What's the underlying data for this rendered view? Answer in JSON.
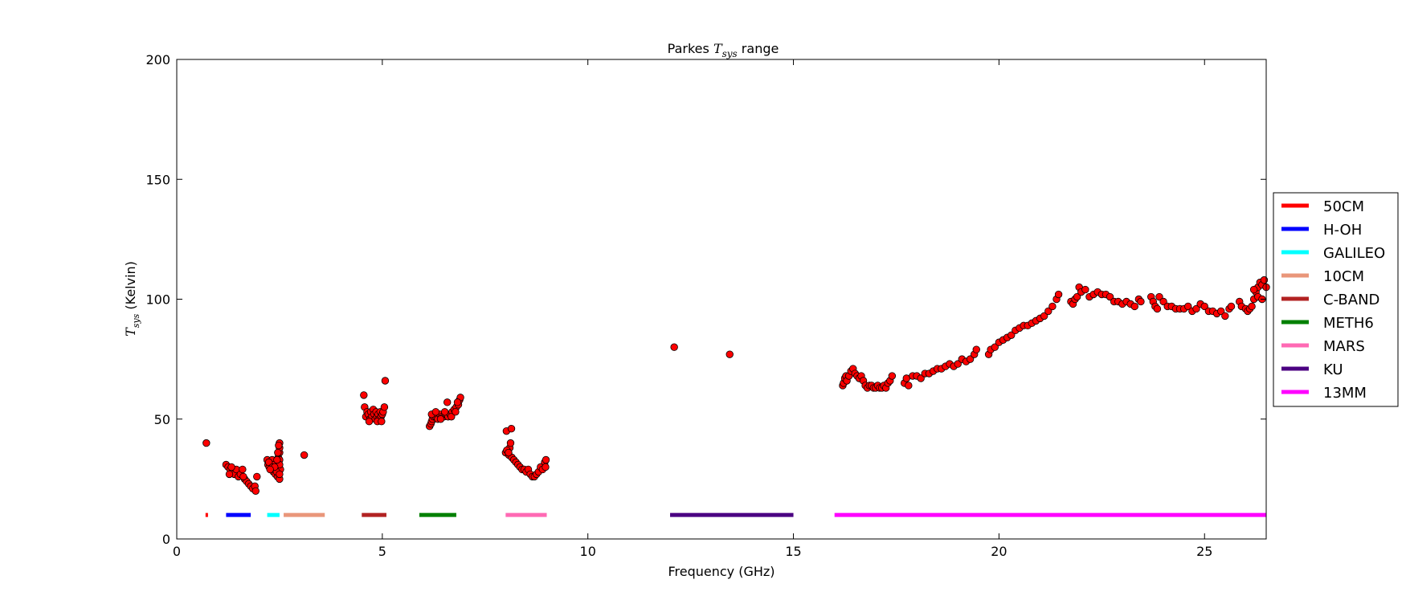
{
  "chart_data": {
    "type": "scatter",
    "title_prefix": "Parkes ",
    "title_math": "T",
    "title_sub": "sys",
    "title_suffix": " range",
    "xlabel": "Frequency (GHz)",
    "ylabel_math": "T",
    "ylabel_sub": "sys",
    "ylabel_suffix": " (Kelvin)",
    "xlim": [
      0,
      26.5
    ],
    "ylim": [
      0,
      200
    ],
    "xticks": [
      0,
      5,
      10,
      15,
      20,
      25
    ],
    "yticks": [
      0,
      50,
      100,
      150,
      200
    ],
    "grid": false,
    "legend_position": "outside-right",
    "point_color": "#ff0000",
    "point_edge_color": "#000000",
    "bands": [
      {
        "name": "50CM",
        "x": [
          0.7,
          0.76
        ],
        "y": 10,
        "color": "#ff0000"
      },
      {
        "name": "H-OH",
        "x": [
          1.2,
          1.8
        ],
        "y": 10,
        "color": "#0000ff"
      },
      {
        "name": "GALILEO",
        "x": [
          2.2,
          2.5
        ],
        "y": 10,
        "color": "#00ffff"
      },
      {
        "name": "10CM",
        "x": [
          2.6,
          3.6
        ],
        "y": 10,
        "color": "#e9967a"
      },
      {
        "name": "C-BAND",
        "x": [
          4.5,
          5.1
        ],
        "y": 10,
        "color": "#b22222"
      },
      {
        "name": "METH6",
        "x": [
          5.9,
          6.8
        ],
        "y": 10,
        "color": "#008000"
      },
      {
        "name": "MARS",
        "x": [
          8.0,
          9.0
        ],
        "y": 10,
        "color": "#ff69b4"
      },
      {
        "name": "KU",
        "x": [
          12.0,
          15.0
        ],
        "y": 10,
        "color": "#4b0082"
      },
      {
        "name": "13MM",
        "x": [
          16.0,
          26.5
        ],
        "y": 10,
        "color": "#ff00ff"
      }
    ],
    "series": [
      {
        "values": [
          [
            0.72,
            40
          ],
          [
            3.1,
            35
          ],
          [
            12.1,
            80
          ],
          [
            13.45,
            77
          ]
        ]
      },
      {
        "values": [
          [
            1.2,
            31
          ],
          [
            1.25,
            30
          ],
          [
            1.3,
            29
          ],
          [
            1.35,
            28
          ],
          [
            1.4,
            27
          ],
          [
            1.45,
            29
          ],
          [
            1.5,
            26
          ],
          [
            1.55,
            27
          ],
          [
            1.6,
            29
          ],
          [
            1.65,
            25
          ],
          [
            1.7,
            24
          ],
          [
            1.75,
            23
          ],
          [
            1.8,
            22
          ],
          [
            1.85,
            21
          ],
          [
            1.9,
            22
          ],
          [
            1.92,
            20
          ],
          [
            1.95,
            26
          ],
          [
            1.28,
            27
          ],
          [
            1.33,
            30
          ],
          [
            1.62,
            26
          ]
        ]
      },
      {
        "values": [
          [
            2.2,
            33
          ],
          [
            2.22,
            31
          ],
          [
            2.25,
            30
          ],
          [
            2.28,
            32
          ],
          [
            2.3,
            29
          ],
          [
            2.32,
            33
          ],
          [
            2.35,
            28
          ],
          [
            2.37,
            31
          ],
          [
            2.4,
            27
          ],
          [
            2.42,
            30
          ],
          [
            2.45,
            26
          ],
          [
            2.47,
            34
          ],
          [
            2.5,
            25
          ],
          [
            2.52,
            29
          ],
          [
            2.24,
            32
          ],
          [
            2.33,
            30
          ],
          [
            2.43,
            28
          ],
          [
            2.5,
            36
          ],
          [
            2.5,
            33
          ],
          [
            2.5,
            31
          ],
          [
            2.5,
            38
          ],
          [
            2.5,
            40
          ],
          [
            2.48,
            39
          ],
          [
            2.46,
            36
          ],
          [
            2.44,
            33
          ],
          [
            2.38,
            30
          ],
          [
            2.27,
            29
          ],
          [
            2.5,
            27
          ]
        ]
      },
      {
        "values": [
          [
            4.55,
            60
          ],
          [
            4.57,
            55
          ],
          [
            4.6,
            51
          ],
          [
            4.63,
            53
          ],
          [
            4.66,
            52
          ],
          [
            4.7,
            50
          ],
          [
            4.72,
            53
          ],
          [
            4.75,
            51
          ],
          [
            4.78,
            54
          ],
          [
            4.8,
            52
          ],
          [
            4.83,
            50
          ],
          [
            4.85,
            53
          ],
          [
            4.87,
            51
          ],
          [
            4.9,
            52
          ],
          [
            4.92,
            50
          ],
          [
            4.95,
            53
          ],
          [
            4.97,
            51
          ],
          [
            5.0,
            52
          ],
          [
            5.02,
            53
          ],
          [
            5.05,
            55
          ],
          [
            5.07,
            66
          ],
          [
            4.88,
            49
          ],
          [
            4.98,
            49
          ],
          [
            4.68,
            49
          ]
        ]
      },
      {
        "values": [
          [
            6.15,
            47
          ],
          [
            6.18,
            48
          ],
          [
            6.2,
            49
          ],
          [
            6.22,
            50
          ],
          [
            6.25,
            51
          ],
          [
            6.28,
            52
          ],
          [
            6.3,
            51
          ],
          [
            6.35,
            50
          ],
          [
            6.4,
            52
          ],
          [
            6.45,
            51
          ],
          [
            6.5,
            51
          ],
          [
            6.55,
            52
          ],
          [
            6.58,
            57
          ],
          [
            6.6,
            51
          ],
          [
            6.65,
            52
          ],
          [
            6.7,
            53
          ],
          [
            6.75,
            54
          ],
          [
            6.8,
            55
          ],
          [
            6.85,
            56
          ],
          [
            6.88,
            58
          ],
          [
            6.9,
            59
          ],
          [
            6.2,
            52
          ],
          [
            6.3,
            53
          ],
          [
            6.42,
            50
          ],
          [
            6.52,
            53
          ],
          [
            6.68,
            51
          ],
          [
            6.78,
            53
          ],
          [
            6.83,
            57
          ]
        ]
      },
      {
        "values": [
          [
            8.0,
            36
          ],
          [
            8.02,
            45
          ],
          [
            8.05,
            37
          ],
          [
            8.08,
            35
          ],
          [
            8.1,
            38
          ],
          [
            8.12,
            40
          ],
          [
            8.14,
            46
          ],
          [
            8.15,
            34
          ],
          [
            8.2,
            33
          ],
          [
            8.25,
            32
          ],
          [
            8.3,
            31
          ],
          [
            8.35,
            30
          ],
          [
            8.4,
            29
          ],
          [
            8.45,
            29
          ],
          [
            8.5,
            28
          ],
          [
            8.55,
            29
          ],
          [
            8.6,
            27
          ],
          [
            8.65,
            26
          ],
          [
            8.7,
            26
          ],
          [
            8.75,
            27
          ],
          [
            8.8,
            28
          ],
          [
            8.85,
            30
          ],
          [
            8.9,
            29
          ],
          [
            8.95,
            32
          ],
          [
            8.98,
            33
          ],
          [
            8.97,
            30
          ],
          [
            8.03,
            37
          ],
          [
            8.07,
            36
          ]
        ]
      },
      {
        "values": [
          [
            16.2,
            64
          ],
          [
            16.22,
            65
          ],
          [
            16.25,
            67
          ],
          [
            16.28,
            68
          ],
          [
            16.3,
            66
          ],
          [
            16.35,
            68
          ],
          [
            16.4,
            70
          ],
          [
            16.45,
            71
          ],
          [
            16.5,
            69
          ],
          [
            16.55,
            68
          ],
          [
            16.6,
            67
          ],
          [
            16.65,
            68
          ],
          [
            16.7,
            66
          ],
          [
            16.75,
            64
          ],
          [
            16.8,
            63
          ],
          [
            16.85,
            64
          ],
          [
            16.9,
            64
          ],
          [
            16.95,
            63
          ],
          [
            17.0,
            63
          ],
          [
            17.05,
            64
          ],
          [
            17.1,
            63
          ],
          [
            17.15,
            63
          ],
          [
            17.2,
            64
          ],
          [
            17.25,
            63
          ],
          [
            17.3,
            65
          ],
          [
            17.35,
            66
          ],
          [
            17.4,
            68
          ],
          [
            17.7,
            65
          ],
          [
            17.75,
            67
          ],
          [
            17.8,
            64
          ],
          [
            17.9,
            68
          ],
          [
            18.0,
            68
          ],
          [
            18.1,
            67
          ],
          [
            18.2,
            69
          ],
          [
            18.3,
            69
          ],
          [
            18.4,
            70
          ],
          [
            18.5,
            71
          ],
          [
            18.6,
            71
          ],
          [
            18.7,
            72
          ],
          [
            18.8,
            73
          ],
          [
            18.9,
            72
          ],
          [
            19.0,
            73
          ],
          [
            19.1,
            75
          ],
          [
            19.2,
            74
          ],
          [
            19.3,
            75
          ],
          [
            19.4,
            77
          ],
          [
            19.45,
            79
          ],
          [
            19.75,
            77
          ],
          [
            19.8,
            79
          ],
          [
            19.9,
            80
          ],
          [
            20.0,
            82
          ],
          [
            20.1,
            83
          ],
          [
            20.2,
            84
          ],
          [
            20.3,
            85
          ],
          [
            20.4,
            87
          ],
          [
            20.5,
            88
          ],
          [
            20.6,
            89
          ],
          [
            20.7,
            89
          ],
          [
            20.8,
            90
          ],
          [
            20.9,
            91
          ],
          [
            21.0,
            92
          ],
          [
            21.1,
            93
          ],
          [
            21.2,
            95
          ],
          [
            21.3,
            97
          ],
          [
            21.4,
            100
          ],
          [
            21.45,
            102
          ],
          [
            21.75,
            99
          ],
          [
            21.8,
            98
          ],
          [
            21.85,
            100
          ],
          [
            21.9,
            101
          ],
          [
            21.95,
            105
          ],
          [
            22.0,
            103
          ],
          [
            22.1,
            104
          ],
          [
            22.2,
            101
          ],
          [
            22.3,
            102
          ],
          [
            22.4,
            103
          ],
          [
            22.5,
            102
          ],
          [
            22.6,
            102
          ],
          [
            22.7,
            101
          ],
          [
            22.8,
            99
          ],
          [
            22.9,
            99
          ],
          [
            23.0,
            98
          ],
          [
            23.1,
            99
          ],
          [
            23.2,
            98
          ],
          [
            23.3,
            97
          ],
          [
            23.4,
            100
          ],
          [
            23.45,
            99
          ],
          [
            23.7,
            101
          ],
          [
            23.75,
            99
          ],
          [
            23.8,
            97
          ],
          [
            23.85,
            96
          ],
          [
            23.9,
            101
          ],
          [
            24.0,
            99
          ],
          [
            24.1,
            97
          ],
          [
            24.2,
            97
          ],
          [
            24.3,
            96
          ],
          [
            24.4,
            96
          ],
          [
            24.5,
            96
          ],
          [
            24.6,
            97
          ],
          [
            24.7,
            95
          ],
          [
            24.8,
            96
          ],
          [
            24.9,
            98
          ],
          [
            25.0,
            97
          ],
          [
            25.1,
            95
          ],
          [
            25.2,
            95
          ],
          [
            25.3,
            94
          ],
          [
            25.4,
            95
          ],
          [
            25.5,
            93
          ],
          [
            25.6,
            96
          ],
          [
            25.65,
            97
          ],
          [
            25.85,
            99
          ],
          [
            25.9,
            97
          ],
          [
            26.0,
            96
          ],
          [
            26.05,
            95
          ],
          [
            26.1,
            96
          ],
          [
            26.15,
            97
          ],
          [
            26.2,
            100
          ],
          [
            26.25,
            103
          ],
          [
            26.3,
            105
          ],
          [
            26.35,
            107
          ],
          [
            26.4,
            106
          ],
          [
            26.45,
            108
          ],
          [
            26.5,
            105
          ],
          [
            26.3,
            101
          ],
          [
            26.4,
            100
          ],
          [
            26.2,
            104
          ]
        ]
      }
    ]
  }
}
